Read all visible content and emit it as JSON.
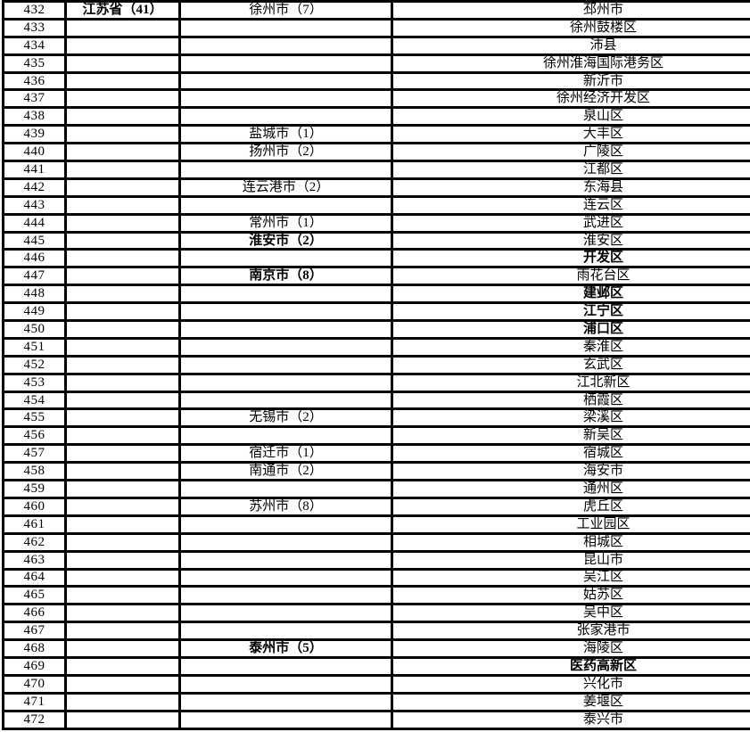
{
  "document": {
    "type": "administrative-region-table",
    "language": "zh-CN",
    "row_range": "432-472"
  },
  "colors": {
    "background": "#ffffff",
    "border": "#000000",
    "text": "#000000"
  },
  "table": {
    "column_keys": [
      "row_number",
      "province",
      "city",
      "district"
    ],
    "rows": [
      [
        "432",
        {
          "t": "江苏省（41）",
          "b": 1
        },
        "徐州市（7）",
        "邳州市"
      ],
      [
        "433",
        "",
        "",
        "徐州鼓楼区"
      ],
      [
        "434",
        "",
        "",
        "沛县"
      ],
      [
        "435",
        "",
        "",
        "徐州淮海国际港务区"
      ],
      [
        "436",
        "",
        "",
        "新沂市"
      ],
      [
        "437",
        "",
        "",
        "徐州经济开发区"
      ],
      [
        "438",
        "",
        "",
        "泉山区"
      ],
      [
        "439",
        "",
        "盐城市（1）",
        "大丰区"
      ],
      [
        "440",
        "",
        "扬州市（2）",
        "广陵区"
      ],
      [
        "441",
        "",
        "",
        "江都区"
      ],
      [
        "442",
        "",
        "连云港市（2）",
        "东海县"
      ],
      [
        "443",
        "",
        "",
        "连云区"
      ],
      [
        "444",
        "",
        "常州市（1）",
        "武进区"
      ],
      [
        "445",
        "",
        {
          "t": "淮安市（2）",
          "b": 1
        },
        "淮安区"
      ],
      [
        "446",
        "",
        "",
        {
          "t": "开发区",
          "b": 1
        }
      ],
      [
        "447",
        "",
        {
          "t": "南京市（8）",
          "b": 1
        },
        "雨花台区"
      ],
      [
        "448",
        "",
        "",
        {
          "t": "建邺区",
          "b": 1
        }
      ],
      [
        "449",
        "",
        "",
        {
          "t": "江宁区",
          "b": 1
        }
      ],
      [
        "450",
        "",
        "",
        {
          "t": "浦口区",
          "b": 1
        }
      ],
      [
        "451",
        "",
        "",
        "秦淮区"
      ],
      [
        "452",
        "",
        "",
        "玄武区"
      ],
      [
        "453",
        "",
        "",
        "江北新区"
      ],
      [
        "454",
        "",
        "",
        "栖霞区"
      ],
      [
        "455",
        "",
        "无锡市（2）",
        "梁溪区"
      ],
      [
        "456",
        "",
        "",
        "新吴区"
      ],
      [
        "457",
        "",
        "宿迁市（1）",
        "宿城区"
      ],
      [
        "458",
        "",
        "南通市（2）",
        "海安市"
      ],
      [
        "459",
        "",
        "",
        "通州区"
      ],
      [
        "460",
        "",
        "苏州市（8）",
        "虎丘区"
      ],
      [
        "461",
        "",
        "",
        "工业园区"
      ],
      [
        "462",
        "",
        "",
        "相城区"
      ],
      [
        "463",
        "",
        "",
        "昆山市"
      ],
      [
        "464",
        "",
        "",
        "吴江区"
      ],
      [
        "465",
        "",
        "",
        "姑苏区"
      ],
      [
        "466",
        "",
        "",
        "吴中区"
      ],
      [
        "467",
        "",
        "",
        "张家港市"
      ],
      [
        "468",
        "",
        {
          "t": "泰州市（5）",
          "b": 1
        },
        "海陵区"
      ],
      [
        "469",
        "",
        "",
        {
          "t": "医药高新区",
          "b": 1
        }
      ],
      [
        "470",
        "",
        "",
        "兴化市"
      ],
      [
        "471",
        "",
        "",
        "姜堰区"
      ],
      [
        "472",
        "",
        "",
        "泰兴市"
      ]
    ]
  }
}
